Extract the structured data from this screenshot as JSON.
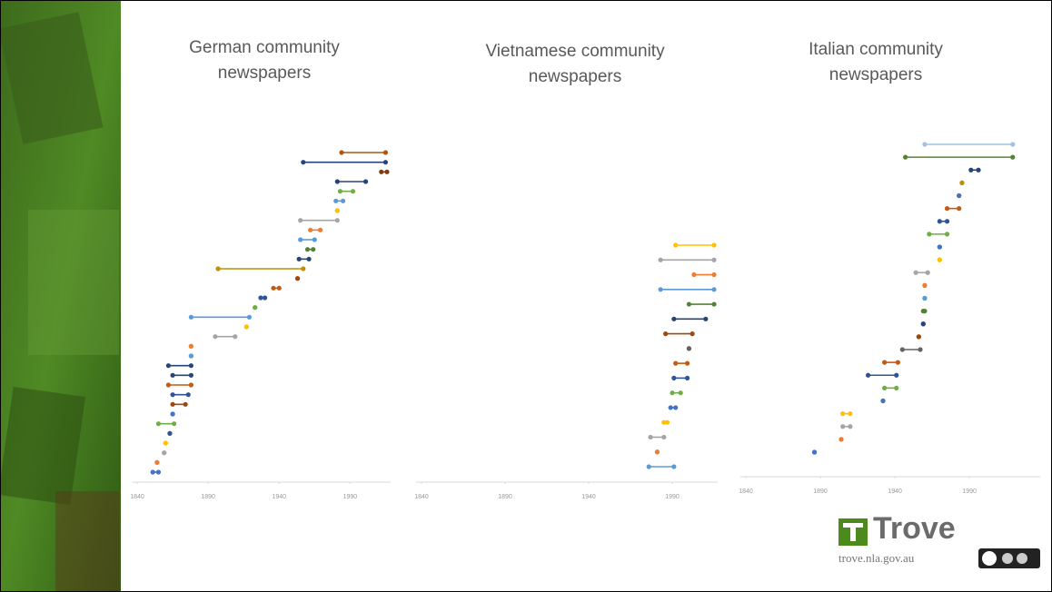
{
  "chart_data": [
    {
      "type": "dumbbell",
      "title": "German community newspapers",
      "start": [
        1984,
        1957,
        2012,
        1981,
        1983,
        1980,
        1981,
        1955,
        1962,
        1955,
        1960,
        1954,
        1897,
        1953,
        1936,
        1927,
        1923,
        1878,
        1917,
        1895,
        1878,
        1878,
        1862,
        1865,
        1862,
        1865,
        1865,
        1865,
        1855,
        1863,
        1860,
        1859,
        1854,
        1851
      ],
      "end": [
        2015,
        2015,
        2016,
        2001,
        1992,
        1985,
        1981,
        1981,
        1969,
        1965,
        1964,
        1961,
        1957,
        1953,
        1940,
        1930,
        1923,
        1919,
        1917,
        1909,
        1878,
        1878,
        1878,
        1878,
        1878,
        1876,
        1874,
        1865,
        1866,
        1863,
        1860,
        1859,
        1854,
        1855
      ],
      "colors": [
        "#b0560f",
        "#264478",
        "#843c0c",
        "#264478",
        "#70ad47",
        "#5b9bd5",
        "#ffc000",
        "#a5a5a5",
        "#ed7d31",
        "#5b9bd5",
        "#548235",
        "#264478",
        "#bf9000",
        "#9e480e",
        "#c55a11",
        "#2f5597",
        "#70ad47",
        "#5b9bd5",
        "#ffc000",
        "#a5a5a5",
        "#ed7d31",
        "#5b9bd5",
        "#264478",
        "#264478",
        "#c55a11",
        "#2f5597",
        "#9e480e",
        "#4472c4",
        "#70ad47",
        "#2f5597",
        "#ffc000",
        "#a5a5a5",
        "#ed7d31",
        "#4472c4"
      ],
      "xlim": [
        1840,
        2016
      ],
      "xticks": [
        1840,
        1890,
        1940,
        1990
      ]
    },
    {
      "type": "dumbbell",
      "title": "Vietnamese community newspapers",
      "start": [
        1992,
        1983,
        2003,
        1983,
        2000,
        1991,
        1986,
        2000,
        1992,
        1991,
        1990,
        1989,
        1985,
        1977,
        1981,
        1976
      ],
      "end": [
        2015,
        2015,
        2015,
        2015,
        2015,
        2010,
        2002,
        2000,
        1999,
        1999,
        1995,
        1992,
        1987,
        1985,
        1981,
        1991
      ],
      "colors": [
        "#ffc000",
        "#a5a5a5",
        "#ed7d31",
        "#5b9bd5",
        "#548235",
        "#264478",
        "#9e480e",
        "#636363",
        "#c55a11",
        "#2f5597",
        "#70ad47",
        "#4472c4",
        "#ffc000",
        "#a5a5a5",
        "#ed7d31",
        "#5b9bd5"
      ],
      "xlim": [
        1840,
        2015
      ],
      "xticks": [
        1840,
        1890,
        1940,
        1990
      ]
    },
    {
      "type": "dumbbell",
      "title": "Italian community newspapers",
      "start": [
        1960,
        1947,
        1991,
        1985,
        1983,
        1975,
        1970,
        1963,
        1970,
        1970,
        1954,
        1960,
        1960,
        1959,
        1959,
        1956,
        1945,
        1933,
        1922,
        1933,
        1932,
        1905,
        1905,
        1904,
        1886
      ],
      "end": [
        2019,
        2019,
        1996,
        1985,
        1983,
        1983,
        1975,
        1975,
        1970,
        1970,
        1962,
        1960,
        1960,
        1960,
        1959,
        1956,
        1957,
        1942,
        1941,
        1941,
        1932,
        1910,
        1910,
        1904,
        1886
      ],
      "colors": [
        "#9dc3e6",
        "#548235",
        "#264478",
        "#bf9000",
        "#4472c4",
        "#c55a11",
        "#2f5597",
        "#70ad47",
        "#4472c4",
        "#ffc000",
        "#a5a5a5",
        "#ed7d31",
        "#5b9bd5",
        "#548235",
        "#264478",
        "#9e480e",
        "#636363",
        "#c55a11",
        "#2f5597",
        "#70ad47",
        "#4472c4",
        "#ffc000",
        "#a5a5a5",
        "#ed7d31",
        "#4472c4"
      ],
      "xlim": [
        1840,
        2035
      ],
      "xticks": [
        1840,
        1890,
        1940,
        1990
      ]
    }
  ],
  "branding": {
    "logo": "Trove",
    "url": "trove.nla.gov.au"
  }
}
